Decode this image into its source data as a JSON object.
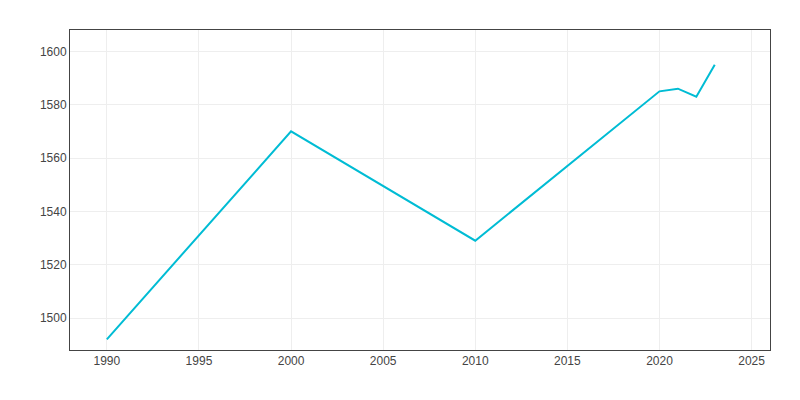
{
  "chart_data": {
    "type": "line",
    "x": [
      1990,
      2000,
      2010,
      2020,
      2021,
      2022,
      2023
    ],
    "values": [
      1492,
      1570,
      1529,
      1585,
      1586,
      1583,
      1595
    ],
    "color": "#00bcd4",
    "xlim": [
      1988,
      2026
    ],
    "ylim": [
      1488,
      1608
    ],
    "xticks": [
      1990,
      1995,
      2000,
      2005,
      2010,
      2015,
      2020,
      2025
    ],
    "yticks": [
      1500,
      1520,
      1540,
      1560,
      1580,
      1600
    ],
    "grid": true
  }
}
